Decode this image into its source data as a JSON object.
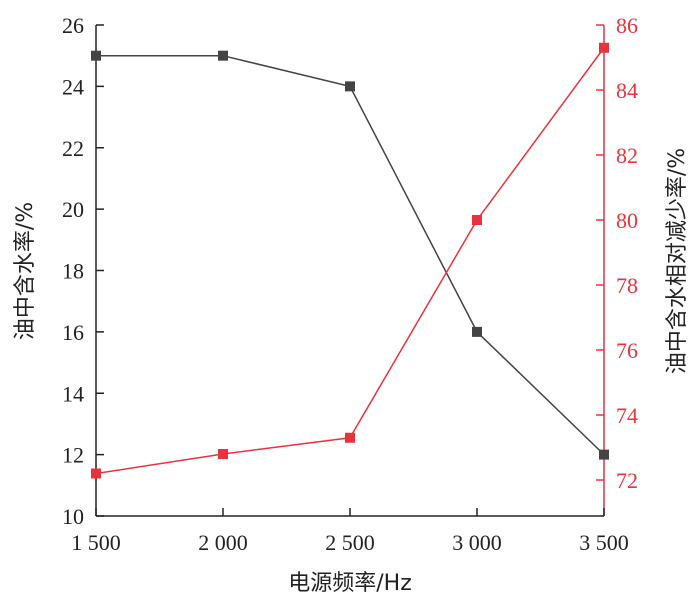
{
  "chart_data": {
    "type": "line",
    "xlabel": "电源频率/Hz",
    "ylabel_left": "油中含水率/%",
    "ylabel_right": "油中含水相对减少率/%",
    "x": [
      1500,
      2000,
      2500,
      3000,
      3500
    ],
    "x_tick_labels": [
      "1 500",
      "2 000",
      "2 500",
      "3 000",
      "3 500"
    ],
    "y_left_ticks": [
      "10",
      "12",
      "14",
      "16",
      "18",
      "20",
      "22",
      "24",
      "26"
    ],
    "y_right_ticks": [
      "72",
      "74",
      "76",
      "78",
      "80",
      "82",
      "84",
      "86"
    ],
    "ylim_left": [
      10,
      26
    ],
    "ylim_right": [
      71,
      86
    ],
    "grid": false,
    "series": [
      {
        "axis": "left",
        "color": "#444444",
        "marker": "square",
        "values": [
          25,
          25,
          24,
          16,
          12
        ]
      },
      {
        "axis": "right",
        "color": "#e8333d",
        "marker": "square",
        "values": [
          72.2,
          72.8,
          73.3,
          80,
          85.3
        ]
      }
    ]
  }
}
